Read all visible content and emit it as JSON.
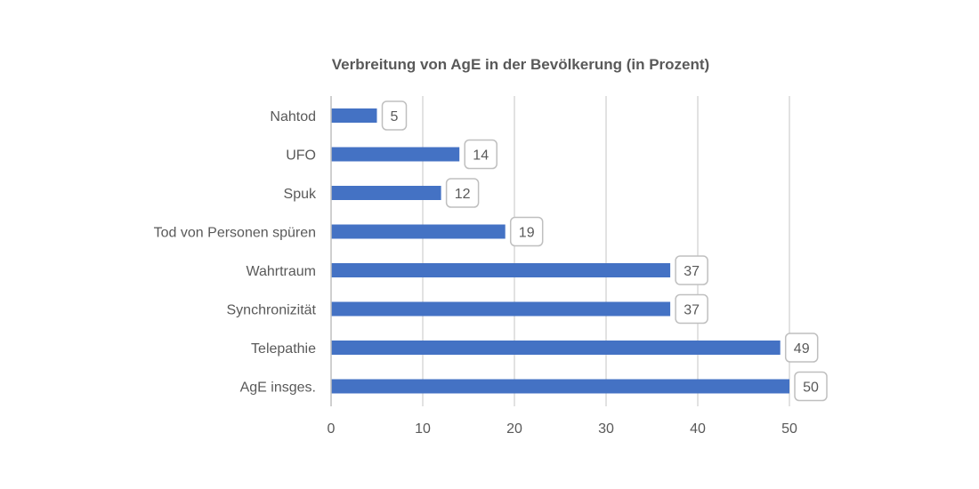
{
  "chart_data": {
    "type": "bar",
    "orientation": "horizontal",
    "title": "Verbreitung von AgE in der Bevölkerung (in Prozent)",
    "categories": [
      "Nahtod",
      "UFO",
      "Spuk",
      "Tod von Personen spüren",
      "Wahrtraum",
      "Synchronizität",
      "Telepathie",
      "AgE insges."
    ],
    "values": [
      5,
      14,
      12,
      19,
      37,
      37,
      49,
      50
    ],
    "xlabel": "",
    "ylabel": "",
    "xlim": [
      0,
      50
    ],
    "xticks": [
      0,
      10,
      20,
      30,
      40,
      50
    ],
    "grid": true,
    "legend": "none",
    "data_labels": true,
    "bar_color": "#4472c4"
  }
}
